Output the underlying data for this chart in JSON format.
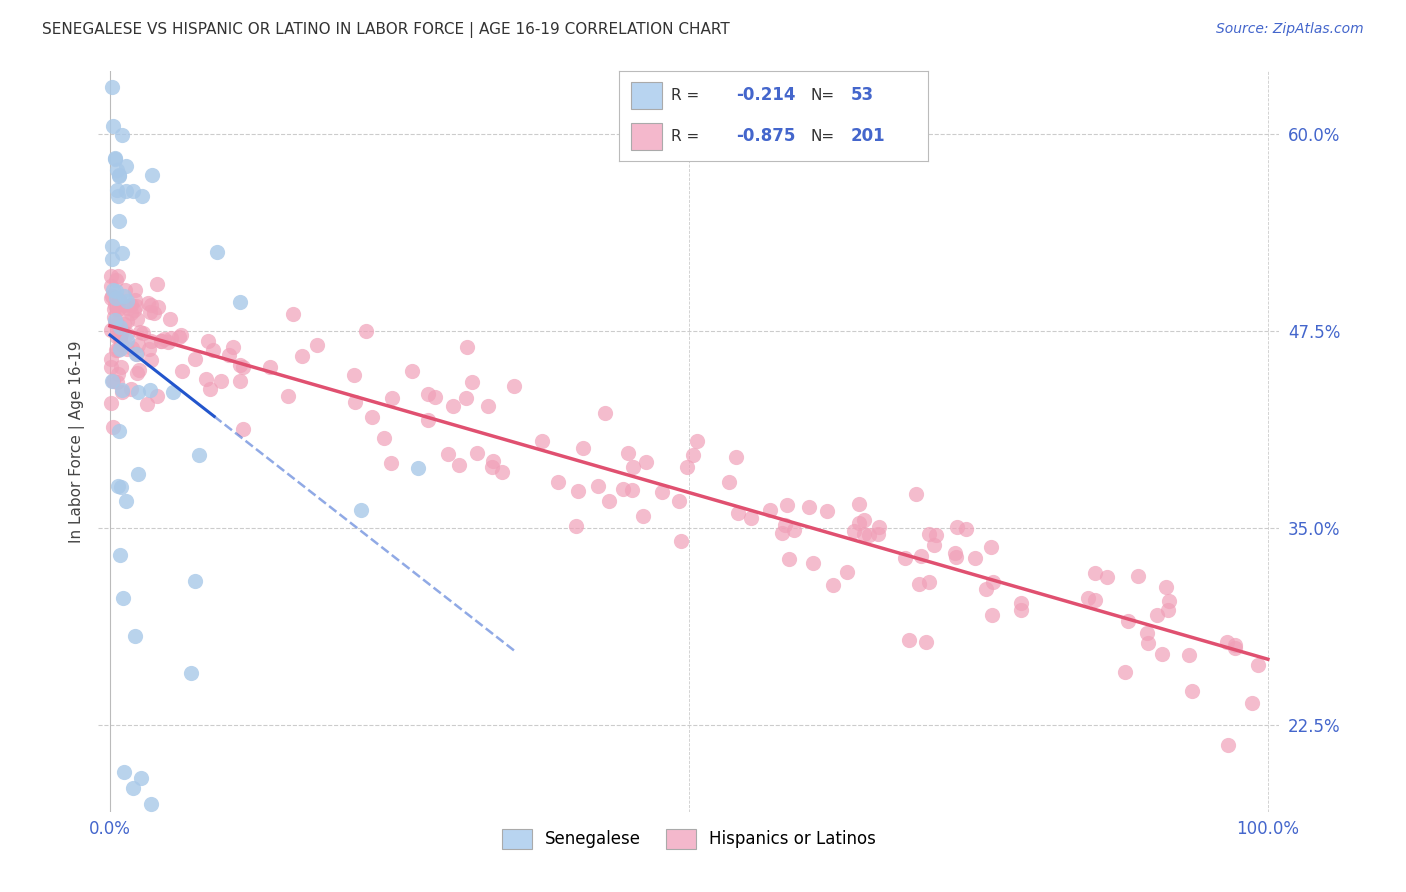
{
  "title": "SENEGALESE VS HISPANIC OR LATINO IN LABOR FORCE | AGE 16-19 CORRELATION CHART",
  "source": "Source: ZipAtlas.com",
  "ylabel": "In Labor Force | Age 16-19",
  "xlim": [
    -0.01,
    1.01
  ],
  "ylim": [
    0.17,
    0.64
  ],
  "x_ticks": [
    0.0,
    0.1,
    0.2,
    0.3,
    0.4,
    0.5,
    0.6,
    0.7,
    0.8,
    0.9,
    1.0
  ],
  "y_ticks": [
    0.225,
    0.35,
    0.475,
    0.6
  ],
  "y_tick_labels": [
    "22.5%",
    "35.0%",
    "47.5%",
    "60.0%"
  ],
  "background_color": "#ffffff",
  "grid_color": "#cccccc",
  "senegalese_color": "#a8c8e8",
  "hispanic_color": "#f0a0b8",
  "senegalese_line_color": "#2255cc",
  "hispanic_line_color": "#e05070",
  "senegalese_R": -0.214,
  "senegalese_N": 53,
  "hispanic_R": -0.875,
  "hispanic_N": 201,
  "legend_senegalese_label": "Senegalese",
  "legend_hispanic_label": "Hispanics or Latinos",
  "legend_face_senegalese": "#b8d4f0",
  "legend_face_hispanic": "#f4b8cc",
  "tick_color": "#4466cc",
  "title_color": "#333333",
  "source_color": "#4466cc"
}
